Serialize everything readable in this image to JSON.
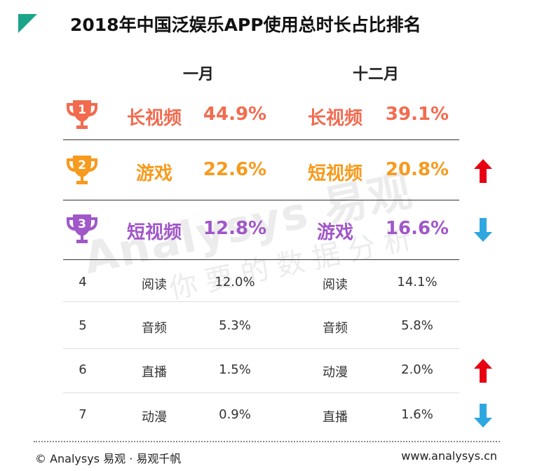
{
  "title": "2018年中国泛娱乐APP使用总时长占比排名",
  "headers": {
    "jan": "一月",
    "dec": "十二月"
  },
  "colors": {
    "rank1": "#f26b4f",
    "rank2": "#f79a1d",
    "rank3": "#a057c9",
    "up": "#e60012",
    "down": "#2ea7e0",
    "accent": "#1aa58a"
  },
  "chart_data": {
    "type": "table",
    "title": "2018年中国泛娱乐APP使用总时长占比排名",
    "columns": [
      "一月",
      "十二月"
    ],
    "rows": [
      {
        "rank": "1",
        "jan_name": "长视频",
        "jan_value": "44.9%",
        "dec_name": "长视频",
        "dec_value": "39.1%",
        "trend": ""
      },
      {
        "rank": "2",
        "jan_name": "游戏",
        "jan_value": "22.6%",
        "dec_name": "短视频",
        "dec_value": "20.8%",
        "trend": "up"
      },
      {
        "rank": "3",
        "jan_name": "短视频",
        "jan_value": "12.8%",
        "dec_name": "游戏",
        "dec_value": "16.6%",
        "trend": "down"
      },
      {
        "rank": "4",
        "jan_name": "阅读",
        "jan_value": "12.0%",
        "dec_name": "阅读",
        "dec_value": "14.1%",
        "trend": ""
      },
      {
        "rank": "5",
        "jan_name": "音频",
        "jan_value": "5.3%",
        "dec_name": "音频",
        "dec_value": "5.8%",
        "trend": ""
      },
      {
        "rank": "6",
        "jan_name": "直播",
        "jan_value": "1.5%",
        "dec_name": "动漫",
        "dec_value": "2.0%",
        "trend": "up"
      },
      {
        "rank": "7",
        "jan_name": "动漫",
        "jan_value": "0.9%",
        "dec_name": "直播",
        "dec_value": "1.6%",
        "trend": "down"
      }
    ]
  },
  "watermark": {
    "line1": "Analysys 易观",
    "line2": "你要的数据分析"
  },
  "footer": {
    "left": "© Analysys 易观 · 易观千帆",
    "right": "www.analysys.cn"
  }
}
